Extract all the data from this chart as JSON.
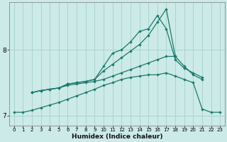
{
  "xlabel": "Humidex (Indice chaleur)",
  "bg_color": "#cceae7",
  "grid_color": "#aad4d0",
  "line_color": "#1a7a6e",
  "xlim": [
    -0.5,
    23.5
  ],
  "ylim": [
    6.85,
    8.72
  ],
  "yticks": [
    7,
    8
  ],
  "xticks": [
    0,
    1,
    2,
    3,
    4,
    5,
    6,
    7,
    8,
    9,
    10,
    11,
    12,
    13,
    14,
    15,
    16,
    17,
    18,
    19,
    20,
    21,
    22,
    23
  ],
  "series": [
    {
      "x": [
        2,
        3,
        4,
        5,
        6,
        7,
        8,
        9,
        10,
        11,
        12,
        13,
        14,
        15,
        16,
        17,
        18,
        19,
        20,
        21
      ],
      "y": [
        7.35,
        7.38,
        7.4,
        7.42,
        7.48,
        7.5,
        7.52,
        7.55,
        7.75,
        7.95,
        8.0,
        8.12,
        8.28,
        8.32,
        8.52,
        8.32,
        7.85,
        7.72,
        7.65,
        7.58
      ]
    },
    {
      "x": [
        2,
        3,
        4,
        5,
        6,
        7,
        8,
        9,
        10,
        11,
        12,
        13,
        14,
        15,
        16,
        17,
        18
      ],
      "y": [
        7.35,
        7.38,
        7.4,
        7.42,
        7.48,
        7.5,
        7.52,
        7.55,
        7.68,
        7.78,
        7.88,
        7.98,
        8.08,
        8.22,
        8.42,
        8.62,
        7.9
      ]
    },
    {
      "x": [
        2,
        3,
        4,
        5,
        6,
        7,
        8,
        9,
        10,
        11,
        12,
        13,
        14,
        15,
        16,
        17,
        18,
        19,
        20,
        21
      ],
      "y": [
        7.35,
        7.38,
        7.4,
        7.42,
        7.46,
        7.48,
        7.5,
        7.52,
        7.55,
        7.6,
        7.65,
        7.7,
        7.75,
        7.8,
        7.85,
        7.9,
        7.9,
        7.75,
        7.62,
        7.55
      ]
    },
    {
      "x": [
        0,
        1,
        2,
        3,
        4,
        5,
        6,
        7,
        8,
        9,
        10,
        11,
        12,
        13,
        14,
        15,
        16,
        17,
        18,
        19,
        20,
        21,
        22,
        23
      ],
      "y": [
        7.05,
        7.05,
        7.08,
        7.12,
        7.16,
        7.2,
        7.25,
        7.3,
        7.35,
        7.4,
        7.46,
        7.5,
        7.55,
        7.58,
        7.6,
        7.62,
        7.62,
        7.65,
        7.6,
        7.55,
        7.5,
        7.1,
        7.05,
        7.05
      ]
    }
  ]
}
